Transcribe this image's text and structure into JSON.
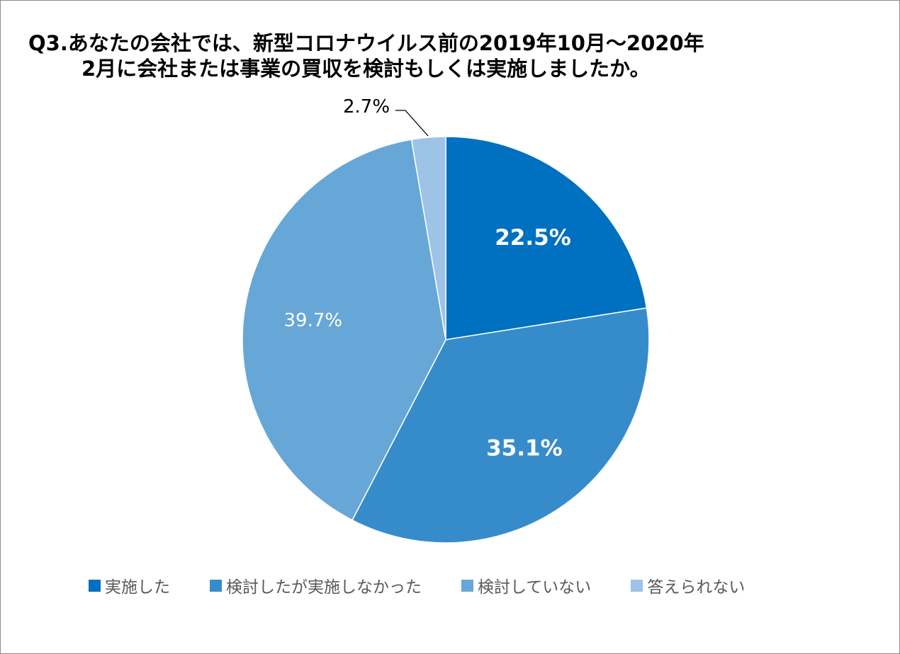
{
  "chart_data": {
    "type": "pie",
    "title": [
      "Q3.あなたの会社では、新型コロナウイルス前の2019年10月～2020年",
      "2月に会社または事業の買収を検討もしくは実施しましたか。"
    ],
    "categories": [
      "実施した",
      "検討したが実施しなかった",
      "検討していない",
      "答えられない"
    ],
    "values": [
      22.5,
      35.1,
      39.7,
      2.7
    ],
    "labels": [
      "22.5%",
      "35.1%",
      "39.7%",
      "2.7%"
    ],
    "colors": [
      "#0070C0",
      "#368CCB",
      "#67A7D7",
      "#9DC3E6"
    ],
    "label_colors": [
      "#ffffff",
      "#ffffff",
      "#ffffff",
      "#000000"
    ],
    "label_bold": [
      true,
      true,
      false,
      false
    ],
    "start": "top",
    "direction": "clockwise",
    "legend": "bottom"
  }
}
